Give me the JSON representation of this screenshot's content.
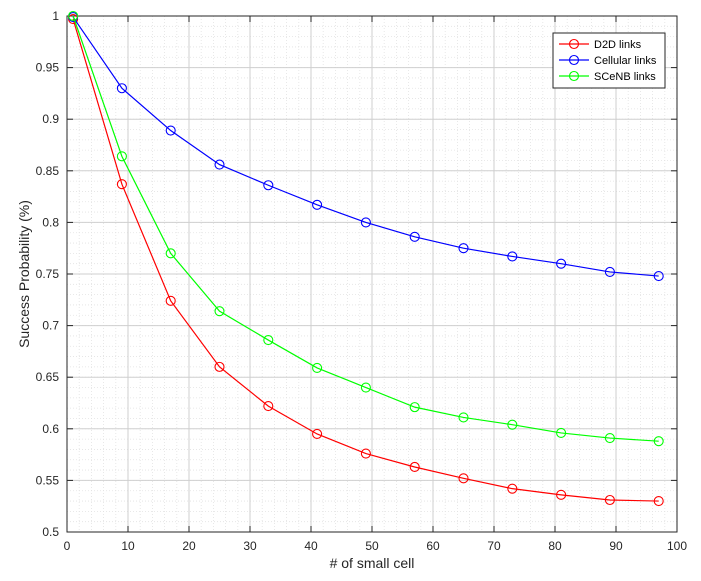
{
  "chart_data": {
    "type": "line",
    "xlabel": "# of small cell",
    "ylabel": "Success Probability (%)",
    "xlim": [
      0,
      100
    ],
    "ylim": [
      0.5,
      1
    ],
    "xticks": [
      0,
      10,
      20,
      30,
      40,
      50,
      60,
      70,
      80,
      90,
      100
    ],
    "yticks": [
      0.5,
      0.55,
      0.6,
      0.65,
      0.7,
      0.75,
      0.8,
      0.85,
      0.9,
      0.95,
      1
    ],
    "ytick_labels": [
      "0.5",
      "0.55",
      "0.6",
      "0.65",
      "0.7",
      "0.75",
      "0.8",
      "0.85",
      "0.9",
      "0.95",
      "1"
    ],
    "grid": true,
    "minor_grid": true,
    "legend_position": "top-right",
    "x": [
      1,
      9,
      17,
      25,
      33,
      41,
      49,
      57,
      65,
      73,
      81,
      89,
      97
    ],
    "series": [
      {
        "name": "D2D links",
        "color": "#ff0000",
        "marker": "circle",
        "values": [
          0.997,
          0.837,
          0.724,
          0.66,
          0.622,
          0.595,
          0.576,
          0.563,
          0.552,
          0.542,
          0.536,
          0.531,
          0.53
        ]
      },
      {
        "name": "Cellular links",
        "color": "#0000ff",
        "marker": "circle",
        "values": [
          0.999,
          0.93,
          0.889,
          0.856,
          0.836,
          0.817,
          0.8,
          0.786,
          0.775,
          0.767,
          0.76,
          0.752,
          0.748
        ]
      },
      {
        "name": "SCeNB links",
        "color": "#00ff00",
        "marker": "circle",
        "values": [
          1.0,
          0.864,
          0.77,
          0.714,
          0.686,
          0.659,
          0.64,
          0.621,
          0.611,
          0.604,
          0.596,
          0.591,
          0.588
        ]
      }
    ]
  }
}
